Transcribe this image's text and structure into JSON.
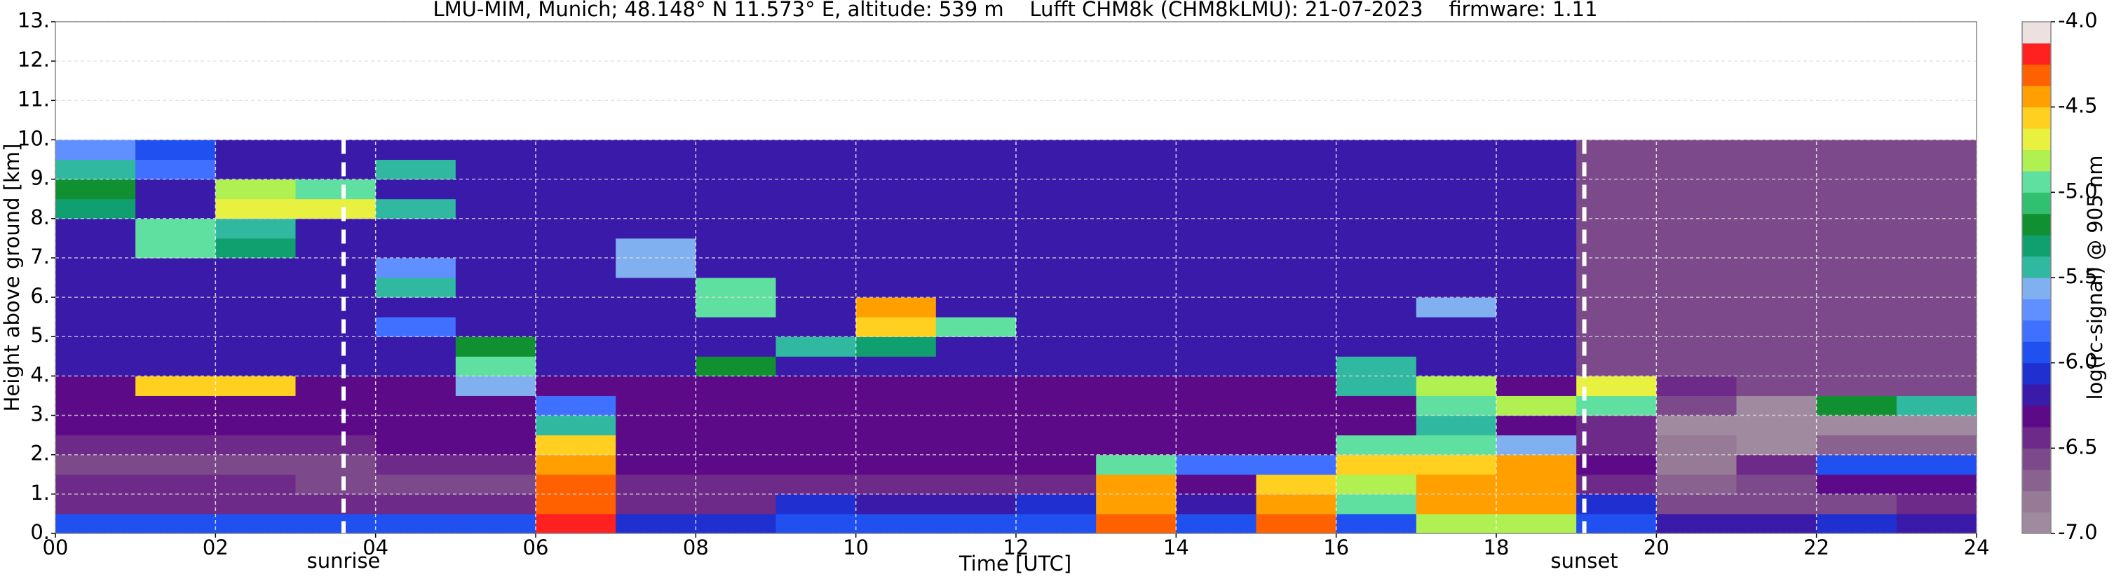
{
  "chart_data": {
    "type": "heatmap",
    "title": "LMU-MIM, Munich; 48.148° N 11.573° E, altitude: 539 m    Lufft CHM8k (CHM8kLMU): 21-07-2023    firmware: 1.11",
    "xlabel": "Time [UTC]",
    "ylabel": "Height above ground [km]",
    "colorbar_label": "log(rc-signal) @ 905 nm",
    "xlim": [
      0,
      24
    ],
    "ylim": [
      0,
      13
    ],
    "xticks": [
      {
        "value": 0,
        "label": "00"
      },
      {
        "value": 2,
        "label": "02"
      },
      {
        "value": 4,
        "label": "04"
      },
      {
        "value": 6,
        "label": "06"
      },
      {
        "value": 8,
        "label": "08"
      },
      {
        "value": 10,
        "label": "10"
      },
      {
        "value": 12,
        "label": "12"
      },
      {
        "value": 14,
        "label": "14"
      },
      {
        "value": 16,
        "label": "16"
      },
      {
        "value": 18,
        "label": "18"
      },
      {
        "value": 20,
        "label": "20"
      },
      {
        "value": 22,
        "label": "22"
      },
      {
        "value": 24,
        "label": "24"
      }
    ],
    "yticks": [
      {
        "value": 0,
        "label": "0."
      },
      {
        "value": 1,
        "label": "1."
      },
      {
        "value": 2,
        "label": "2."
      },
      {
        "value": 3,
        "label": "3."
      },
      {
        "value": 4,
        "label": "4."
      },
      {
        "value": 5,
        "label": "5."
      },
      {
        "value": 6,
        "label": "6."
      },
      {
        "value": 7,
        "label": "7."
      },
      {
        "value": 8,
        "label": "8."
      },
      {
        "value": 9,
        "label": "9."
      },
      {
        "value": 10,
        "label": "10."
      },
      {
        "value": 11,
        "label": "11."
      },
      {
        "value": 12,
        "label": "12."
      },
      {
        "value": 13,
        "label": "13."
      }
    ],
    "clim": [
      -7,
      -4
    ],
    "cticks": [
      {
        "value": -4,
        "label": "-4.0"
      },
      {
        "value": -4.5,
        "label": "-4.5"
      },
      {
        "value": -5,
        "label": "-5.0"
      },
      {
        "value": -5.5,
        "label": "-5.5"
      },
      {
        "value": -6,
        "label": "-6.0"
      },
      {
        "value": -6.5,
        "label": "-6.5"
      },
      {
        "value": -7,
        "label": "-7.0"
      }
    ],
    "colors": [
      "#a08aa0",
      "#967a96",
      "#8a6290",
      "#7c4a8a",
      "#6e2a88",
      "#5c0a88",
      "#3a1aa8",
      "#2030d0",
      "#2050f0",
      "#4070ff",
      "#6090ff",
      "#80b0f0",
      "#30b8a0",
      "#10a070",
      "#109030",
      "#30c070",
      "#60e0a0",
      "#b0f050",
      "#e8f040",
      "#ffd020",
      "#ffa000",
      "#ff6000",
      "#ff2020",
      "#ece0e0"
    ],
    "grid": true,
    "xbins": [
      0,
      1,
      2,
      3,
      4,
      5,
      6,
      7,
      8,
      9,
      10,
      11,
      12,
      13,
      14,
      15,
      16,
      17,
      18,
      19,
      20,
      21,
      22,
      23,
      24
    ],
    "ybins": [
      0,
      0.5,
      1,
      1.5,
      2,
      2.5,
      3,
      3.5,
      4,
      4.5,
      5,
      5.5,
      6,
      6.5,
      7,
      7.5,
      8,
      8.5,
      9,
      9.5,
      10
    ],
    "z": [
      [
        -6.0,
        -6.0,
        -6.0,
        -6.0,
        -6.0,
        -6.0,
        -4.2,
        -6.1,
        -6.1,
        -6.0,
        -6.0,
        -6.0,
        -5.9,
        -4.3,
        -6.0,
        -4.3,
        -6.0,
        -4.8,
        -4.8,
        -6.0,
        -6.2,
        -6.2,
        -6.1,
        -6.2
      ],
      [
        -6.4,
        -6.4,
        -6.4,
        -6.4,
        -6.4,
        -6.5,
        -4.3,
        -6.4,
        -6.4,
        -6.1,
        -6.2,
        -6.2,
        -6.1,
        -4.4,
        -6.2,
        -4.5,
        -4.9,
        -4.5,
        -4.4,
        -6.1,
        -6.6,
        -6.6,
        -6.6,
        -6.5
      ],
      [
        -6.5,
        -6.5,
        -6.5,
        -6.6,
        -6.6,
        -6.6,
        -4.3,
        -6.5,
        -6.5,
        -6.5,
        -6.5,
        -6.5,
        -6.4,
        -4.5,
        -6.3,
        -4.6,
        -4.8,
        -4.4,
        -4.4,
        -6.4,
        -6.7,
        -6.6,
        -6.3,
        -6.3
      ],
      [
        -6.6,
        -6.6,
        -6.6,
        -6.6,
        -6.5,
        -6.4,
        -4.4,
        -6.3,
        -6.3,
        -6.3,
        -6.3,
        -6.3,
        -6.3,
        -5.0,
        -5.8,
        -5.8,
        -4.6,
        -4.6,
        -4.4,
        -6.3,
        -6.8,
        -6.4,
        -6.0,
        -6.0
      ],
      [
        -6.4,
        -6.4,
        -6.4,
        -6.4,
        -6.3,
        -6.3,
        -4.6,
        -6.3,
        -6.3,
        -6.3,
        -6.3,
        -6.3,
        -6.3,
        -6.3,
        -6.3,
        -6.3,
        -5.0,
        -5.0,
        -5.6,
        -6.5,
        -6.8,
        -7.0,
        -6.7,
        -6.7
      ],
      [
        -6.3,
        -6.3,
        -6.3,
        -6.3,
        -6.3,
        -6.3,
        -5.5,
        -6.3,
        -6.3,
        -6.3,
        -6.3,
        -6.3,
        -6.3,
        -6.3,
        -6.3,
        -6.3,
        -6.3,
        -5.5,
        -6.3,
        -6.5,
        -7.0,
        -7.0,
        -7.0,
        -7.0
      ],
      [
        -6.3,
        -6.3,
        -6.3,
        -6.3,
        -6.3,
        -6.3,
        -5.8,
        -6.3,
        -6.3,
        -6.3,
        -6.3,
        -6.3,
        -6.3,
        -6.3,
        -6.3,
        -6.3,
        -6.3,
        -5.0,
        -4.8,
        -5.0,
        -6.6,
        -7.0,
        -5.2,
        -5.5
      ],
      [
        -6.3,
        -4.6,
        -4.6,
        -6.3,
        -6.3,
        -5.6,
        -6.3,
        -6.3,
        -6.3,
        -6.3,
        -6.3,
        -6.3,
        -6.3,
        -6.3,
        -6.3,
        -6.3,
        -5.5,
        -4.8,
        -6.3,
        -4.7,
        -6.5,
        -6.6,
        -6.6,
        -6.6
      ],
      [
        -6.2,
        -6.2,
        -6.2,
        -6.2,
        -6.2,
        -5.0,
        -6.2,
        -6.2,
        -5.2,
        -6.2,
        -6.2,
        -6.2,
        -6.2,
        -6.2,
        -6.2,
        -6.2,
        -5.5,
        -6.2,
        -6.2,
        -6.6,
        -6.6,
        -6.6,
        -6.6,
        -6.6
      ],
      [
        -6.2,
        -6.2,
        -6.2,
        -6.2,
        -6.2,
        -5.2,
        -6.2,
        -6.2,
        -6.2,
        -5.5,
        -5.3,
        -6.2,
        -6.2,
        -6.2,
        -6.2,
        -6.2,
        -6.2,
        -6.2,
        -6.2,
        -6.6,
        -6.6,
        -6.6,
        -6.6,
        -6.6
      ],
      [
        -6.2,
        -6.2,
        -6.2,
        -6.2,
        -5.8,
        -6.2,
        -6.2,
        -6.2,
        -6.2,
        -6.2,
        -4.6,
        -5.0,
        -6.2,
        -6.2,
        -6.2,
        -6.2,
        -6.2,
        -6.2,
        -6.2,
        -6.6,
        -6.6,
        -6.6,
        -6.6,
        -6.6
      ],
      [
        -6.2,
        -6.2,
        -6.2,
        -6.2,
        -6.2,
        -6.2,
        -6.2,
        -6.2,
        -5.0,
        -6.2,
        -4.5,
        -6.2,
        -6.2,
        -6.2,
        -6.2,
        -6.2,
        -6.2,
        -5.6,
        -6.2,
        -6.6,
        -6.6,
        -6.6,
        -6.6,
        -6.6
      ],
      [
        -6.2,
        -6.2,
        -6.2,
        -6.2,
        -5.5,
        -6.2,
        -6.2,
        -6.2,
        -5.0,
        -6.2,
        -6.2,
        -6.2,
        -6.2,
        -6.2,
        -6.2,
        -6.2,
        -6.2,
        -6.2,
        -6.2,
        -6.6,
        -6.6,
        -6.6,
        -6.6,
        -6.6
      ],
      [
        -6.2,
        -6.2,
        -6.2,
        -6.2,
        -5.7,
        -6.2,
        -6.2,
        -5.6,
        -6.2,
        -6.2,
        -6.2,
        -6.2,
        -6.2,
        -6.2,
        -6.2,
        -6.2,
        -6.2,
        -6.2,
        -6.2,
        -6.6,
        -6.6,
        -6.6,
        -6.6,
        -6.6
      ],
      [
        -6.2,
        -5.0,
        -5.3,
        -6.2,
        -6.2,
        -6.2,
        -6.2,
        -5.6,
        -6.2,
        -6.2,
        -6.2,
        -6.2,
        -6.2,
        -6.2,
        -6.2,
        -6.2,
        -6.2,
        -6.2,
        -6.2,
        -6.6,
        -6.6,
        -6.6,
        -6.6,
        -6.6
      ],
      [
        -6.2,
        -4.9,
        -5.4,
        -6.2,
        -6.2,
        -6.2,
        -6.2,
        -6.2,
        -6.2,
        -6.2,
        -6.2,
        -6.2,
        -6.2,
        -6.2,
        -6.2,
        -6.2,
        -6.2,
        -6.2,
        -6.2,
        -6.6,
        -6.6,
        -6.6,
        -6.6,
        -6.6
      ],
      [
        -5.3,
        -6.2,
        -4.7,
        -4.7,
        -5.5,
        -6.2,
        -6.2,
        -6.2,
        -6.2,
        -6.2,
        -6.2,
        -6.2,
        -6.2,
        -6.2,
        -6.2,
        -6.2,
        -6.2,
        -6.2,
        -6.2,
        -6.6,
        -6.6,
        -6.6,
        -6.6,
        -6.6
      ],
      [
        -5.2,
        -6.2,
        -4.8,
        -5.0,
        -6.2,
        -6.2,
        -6.2,
        -6.2,
        -6.2,
        -6.2,
        -6.2,
        -6.2,
        -6.2,
        -6.2,
        -6.2,
        -6.2,
        -6.2,
        -6.2,
        -6.2,
        -6.6,
        -6.6,
        -6.6,
        -6.6,
        -6.6
      ],
      [
        -5.5,
        -5.8,
        -6.2,
        -6.2,
        -5.5,
        -6.2,
        -6.2,
        -6.2,
        -6.2,
        -6.2,
        -6.2,
        -6.2,
        -6.2,
        -6.2,
        -6.2,
        -6.2,
        -6.2,
        -6.2,
        -6.2,
        -6.6,
        -6.6,
        -6.6,
        -6.6,
        -6.6
      ],
      [
        -5.7,
        -5.9,
        -6.2,
        -6.2,
        -6.2,
        -6.2,
        -6.2,
        -6.2,
        -6.2,
        -6.2,
        -6.2,
        -6.2,
        -6.2,
        -6.2,
        -6.2,
        -6.2,
        -6.2,
        -6.2,
        -6.2,
        -6.6,
        -6.6,
        -6.6,
        -6.6,
        -6.6
      ]
    ],
    "annotations": [
      {
        "text": "sunrise",
        "x": 3.6
      },
      {
        "text": "sunset",
        "x": 19.1
      }
    ]
  }
}
